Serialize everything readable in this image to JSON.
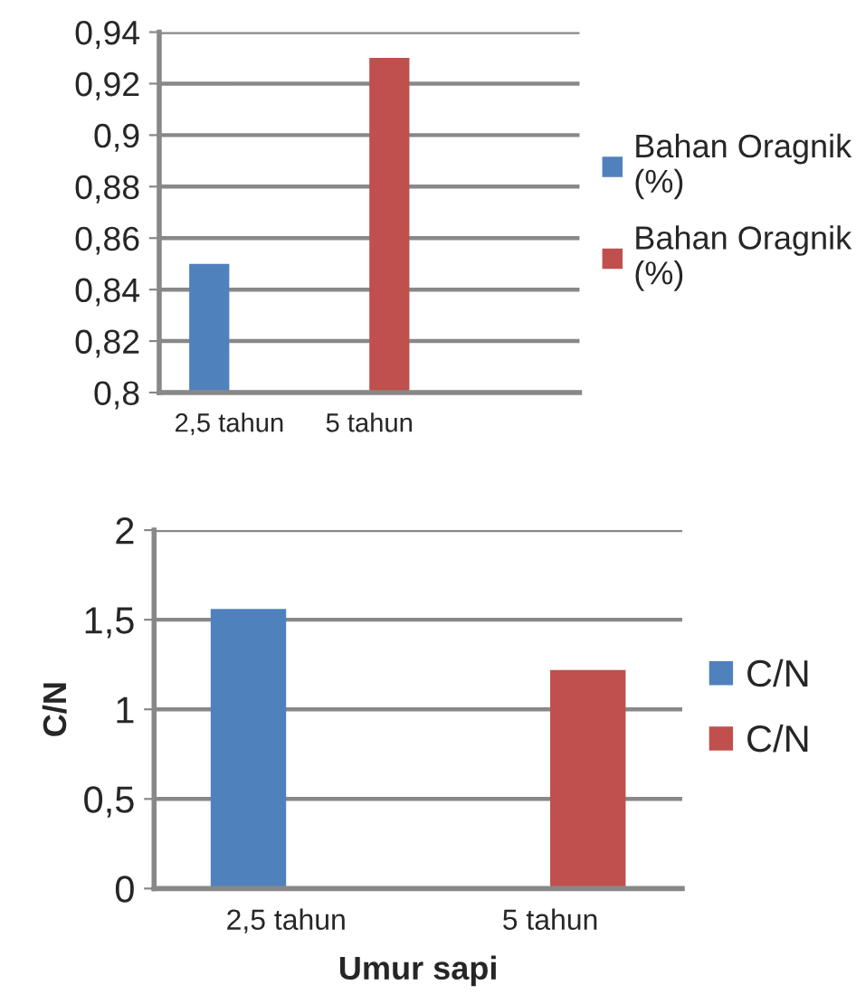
{
  "chart_data": [
    {
      "type": "bar",
      "categories": [
        "2,5 tahun",
        "5 tahun",
        null
      ],
      "series": [
        {
          "name": "Bahan Oragnik (%)",
          "color": "#4f81bd",
          "values": [
            0.85,
            null,
            null
          ]
        },
        {
          "name": "Bahan Oragnik (%)",
          "color": "#c0504d",
          "values": [
            null,
            0.93,
            null
          ]
        }
      ],
      "ylim": [
        0.8,
        0.94
      ],
      "yticks": [
        {
          "value": 0.8,
          "label": "0,8"
        },
        {
          "value": 0.82,
          "label": "0,82"
        },
        {
          "value": 0.84,
          "label": "0,84"
        },
        {
          "value": 0.86,
          "label": "0,86"
        },
        {
          "value": 0.88,
          "label": "0,88"
        },
        {
          "value": 0.9,
          "label": "0,9"
        },
        {
          "value": 0.92,
          "label": "0,92"
        },
        {
          "value": 0.94,
          "label": "0,94"
        }
      ],
      "grid": "y",
      "legend": "right"
    },
    {
      "type": "bar",
      "categories": [
        "2,5 tahun",
        "5 tahun"
      ],
      "xlabel": "Umur sapi",
      "ylabel": "C/N",
      "series": [
        {
          "name": "C/N",
          "color": "#4f81bd",
          "values": [
            1.56,
            null
          ]
        },
        {
          "name": "C/N",
          "color": "#c0504d",
          "values": [
            null,
            1.22
          ]
        }
      ],
      "ylim": [
        0,
        2
      ],
      "yticks": [
        0,
        {
          "value": 0.5,
          "label": "0,5"
        },
        1,
        {
          "value": 1.5,
          "label": "1,5"
        },
        2
      ],
      "grid": "y",
      "legend": "right"
    }
  ]
}
